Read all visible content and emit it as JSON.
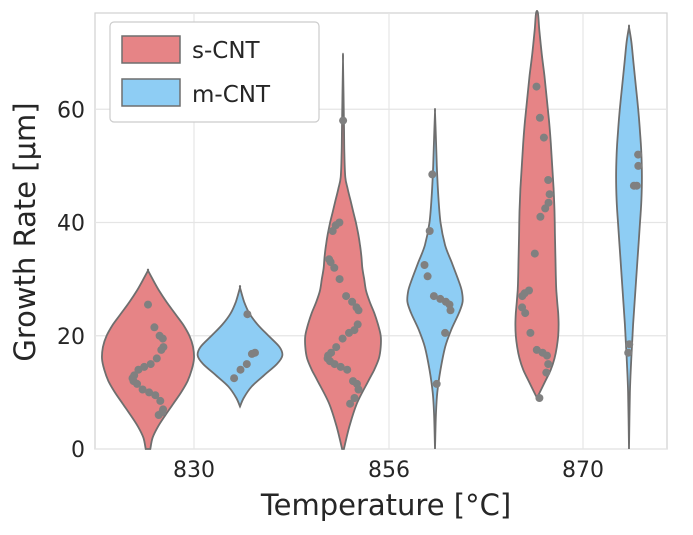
{
  "chart_data": {
    "type": "violin",
    "xlabel": "Temperature [°C]",
    "ylabel": "Growth Rate [μm]",
    "categories": [
      "830",
      "856",
      "870"
    ],
    "ylim": [
      0,
      77
    ],
    "yticks": [
      0,
      20,
      40,
      60
    ],
    "grid": true,
    "legend_position": "top-left",
    "colors": {
      "s-CNT": "#e68486",
      "m-CNT": "#8ecdf4",
      "outline": "#6e6e6e",
      "points": "#808080"
    },
    "series": [
      {
        "name": "s-CNT",
        "groups": [
          {
            "category": "830",
            "range": [
              0,
              31.5
            ],
            "profile": [
              [
                0,
                0.05
              ],
              [
                2,
                0.1
              ],
              [
                4,
                0.22
              ],
              [
                6,
                0.38
              ],
              [
                8,
                0.55
              ],
              [
                10,
                0.72
              ],
              [
                12,
                0.86
              ],
              [
                14,
                0.95
              ],
              [
                16,
                1.0
              ],
              [
                18,
                0.98
              ],
              [
                20,
                0.9
              ],
              [
                22,
                0.76
              ],
              [
                24,
                0.58
              ],
              [
                26,
                0.4
              ],
              [
                28,
                0.24
              ],
              [
                30,
                0.1
              ],
              [
                31.5,
                0.0
              ]
            ],
            "points": [
              25.5,
              21.5,
              20,
              19.5,
              18,
              17.5,
              16,
              15,
              14.5,
              14,
              13,
              12.5,
              12,
              11.5,
              10.5,
              10,
              9.5,
              8.5,
              7,
              6.5,
              6
            ]
          },
          {
            "category": "856",
            "range": [
              0,
              68.5
            ],
            "profile": [
              [
                0,
                0.02
              ],
              [
                4,
                0.14
              ],
              [
                8,
                0.3
              ],
              [
                12,
                0.55
              ],
              [
                14,
                0.68
              ],
              [
                16,
                0.78
              ],
              [
                18,
                0.82
              ],
              [
                20,
                0.82
              ],
              [
                22,
                0.76
              ],
              [
                24,
                0.68
              ],
              [
                26,
                0.58
              ],
              [
                28,
                0.5
              ],
              [
                30,
                0.46
              ],
              [
                32,
                0.42
              ],
              [
                34,
                0.4
              ],
              [
                36,
                0.37
              ],
              [
                38,
                0.33
              ],
              [
                40,
                0.28
              ],
              [
                42,
                0.22
              ],
              [
                44,
                0.16
              ],
              [
                46,
                0.1
              ],
              [
                48,
                0.05
              ],
              [
                52,
                0.03
              ],
              [
                58,
                0.02
              ],
              [
                68.5,
                0.0
              ]
            ],
            "points": [
              58,
              40,
              39.5,
              38.5,
              33.5,
              33,
              32,
              30,
              27,
              26,
              25,
              24.5,
              22,
              21,
              20.5,
              19.5,
              18,
              17,
              16.5,
              16,
              15.5,
              15,
              14.5,
              14,
              12,
              11.5,
              10.5,
              9,
              8
            ]
          }
        ]
      },
      {
        "name": "m-CNT",
        "groups": [
          {
            "category": "830",
            "range": [
              7.5,
              28.5
            ],
            "profile": [
              [
                7.5,
                0.0
              ],
              [
                9,
                0.08
              ],
              [
                11,
                0.25
              ],
              [
                13,
                0.52
              ],
              [
                15,
                0.8
              ],
              [
                16.5,
                0.92
              ],
              [
                18,
                0.86
              ],
              [
                20,
                0.62
              ],
              [
                22,
                0.38
              ],
              [
                24,
                0.2
              ],
              [
                26,
                0.09
              ],
              [
                28.5,
                0.0
              ]
            ],
            "points": [
              23.8,
              17,
              16.8,
              15,
              14,
              12.5
            ]
          },
          {
            "category": "856",
            "range": [
              0,
              59.5
            ],
            "profile": [
              [
                0,
                0.0
              ],
              [
                6,
                0.02
              ],
              [
                10,
                0.05
              ],
              [
                14,
                0.12
              ],
              [
                18,
                0.22
              ],
              [
                21,
                0.35
              ],
              [
                24,
                0.52
              ],
              [
                26,
                0.6
              ],
              [
                28,
                0.58
              ],
              [
                30,
                0.5
              ],
              [
                33,
                0.36
              ],
              [
                36,
                0.22
              ],
              [
                40,
                0.12
              ],
              [
                45,
                0.07
              ],
              [
                50,
                0.04
              ],
              [
                55,
                0.02
              ],
              [
                59.5,
                0.0
              ]
            ],
            "points": [
              48.5,
              38.5,
              32.5,
              30.5,
              27,
              26.5,
              26,
              25.5,
              24.5,
              20.5,
              11.5
            ]
          }
        ]
      }
    ],
    "extra_groups": [
      {
        "series": "s-CNT",
        "category": "870",
        "range": [
          9,
          77
        ],
        "profile": [
          [
            9,
            0.0
          ],
          [
            12,
            0.18
          ],
          [
            14,
            0.3
          ],
          [
            16,
            0.38
          ],
          [
            18,
            0.43
          ],
          [
            20,
            0.46
          ],
          [
            22,
            0.47
          ],
          [
            24,
            0.46
          ],
          [
            26,
            0.44
          ],
          [
            28,
            0.42
          ],
          [
            30,
            0.41
          ],
          [
            34,
            0.4
          ],
          [
            38,
            0.39
          ],
          [
            42,
            0.38
          ],
          [
            46,
            0.36
          ],
          [
            50,
            0.33
          ],
          [
            54,
            0.3
          ],
          [
            58,
            0.26
          ],
          [
            62,
            0.21
          ],
          [
            66,
            0.16
          ],
          [
            70,
            0.1
          ],
          [
            74,
            0.05
          ],
          [
            77,
            0.02
          ]
        ],
        "points": [
          64,
          58.5,
          55,
          47.5,
          45,
          43.5,
          42.5,
          41,
          34.5,
          28,
          27.5,
          27,
          25,
          24,
          20.5,
          17.5,
          17,
          16.5,
          15,
          13.5,
          9
        ]
      },
      {
        "series": "m-CNT",
        "category": "870",
        "range": [
          0,
          74.5
        ],
        "profile": [
          [
            0,
            0.0
          ],
          [
            10,
            0.02
          ],
          [
            16,
            0.05
          ],
          [
            22,
            0.09
          ],
          [
            28,
            0.14
          ],
          [
            34,
            0.19
          ],
          [
            40,
            0.24
          ],
          [
            44,
            0.27
          ],
          [
            48,
            0.28
          ],
          [
            52,
            0.27
          ],
          [
            56,
            0.24
          ],
          [
            60,
            0.2
          ],
          [
            64,
            0.15
          ],
          [
            68,
            0.1
          ],
          [
            72,
            0.05
          ],
          [
            74.5,
            0.0
          ]
        ],
        "points": [
          52,
          50,
          46.5,
          46.5,
          18.5,
          17
        ]
      }
    ]
  }
}
